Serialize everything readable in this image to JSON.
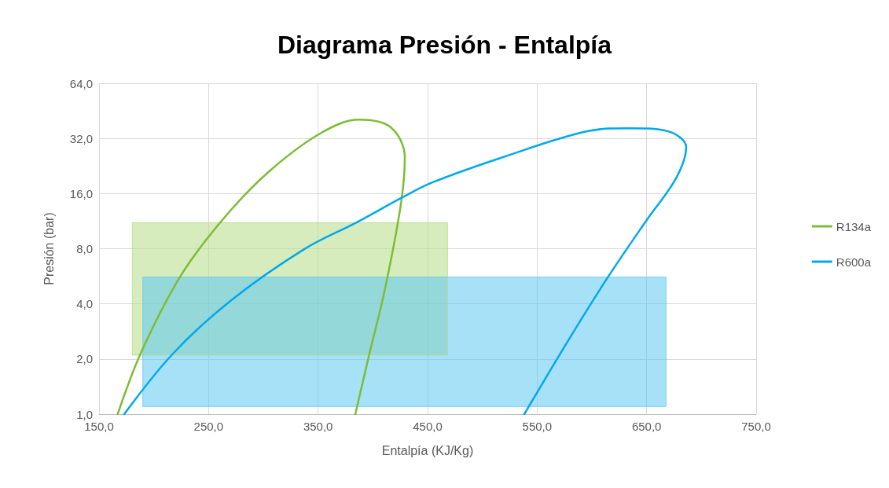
{
  "chart_data": {
    "type": "line",
    "title": "Diagrama Presión - Entalpía",
    "xlabel": "Entalpía (KJ/Kg)",
    "ylabel": "Presión (bar)",
    "xlim": [
      150,
      750
    ],
    "xticks": [
      {
        "value": 150,
        "label": "150,0"
      },
      {
        "value": 250,
        "label": "250,0"
      },
      {
        "value": 350,
        "label": "350,0"
      },
      {
        "value": 450,
        "label": "450,0"
      },
      {
        "value": 550,
        "label": "550,0"
      },
      {
        "value": 650,
        "label": "650,0"
      },
      {
        "value": 750,
        "label": "750,0"
      }
    ],
    "ylim": [
      1,
      64
    ],
    "yticks": [
      {
        "value": 1,
        "label": "1,0"
      },
      {
        "value": 2,
        "label": "2,0"
      },
      {
        "value": 4,
        "label": "4,0"
      },
      {
        "value": 8,
        "label": "8,0"
      },
      {
        "value": 16,
        "label": "16,0"
      },
      {
        "value": 32,
        "label": "32,0"
      },
      {
        "value": 64,
        "label": "64,0"
      }
    ],
    "log": "y",
    "grid": true,
    "legend": "right",
    "marker": "none",
    "line_style": "solid",
    "series": [
      {
        "type": "area",
        "color": "#b5dc85",
        "x": [
          180.4,
          180.4,
          468.2,
          468.2
        ],
        "values": [
          2.1,
          11.1,
          11.1,
          2.1
        ]
      },
      {
        "type": "area",
        "color": "#5ec8f2",
        "x": [
          190,
          190,
          667.7,
          667.7
        ],
        "values": [
          1.1,
          5.6,
          5.6,
          1.1
        ]
      },
      {
        "name": "R134a",
        "color": "#7cbd35",
        "x": [
          167,
          188.8,
          224.6,
          262.7,
          303.6,
          351.7,
          387.6,
          416.3,
          429.2,
          425.6,
          411.2,
          396.9,
          384
        ],
        "values": [
          1,
          2.2,
          5.7,
          11.5,
          20.7,
          34,
          40.5,
          36.8,
          25.3,
          14,
          4.86,
          2.14,
          1
        ]
      },
      {
        "name": "R600a",
        "color": "#00a9ec",
        "x": [
          173,
          217.5,
          269.9,
          337.3,
          384.7,
          425.6,
          454.3,
          518.9,
          595.7,
          633.7,
          669.6,
          686.1,
          676.8,
          650.2,
          614.4,
          578.5,
          538.3
        ],
        "values": [
          1,
          2.14,
          4.15,
          7.95,
          11.1,
          15.1,
          18.4,
          25.3,
          35,
          36.4,
          35,
          28.7,
          19.4,
          11.5,
          5.57,
          2.53,
          1
        ]
      }
    ]
  }
}
